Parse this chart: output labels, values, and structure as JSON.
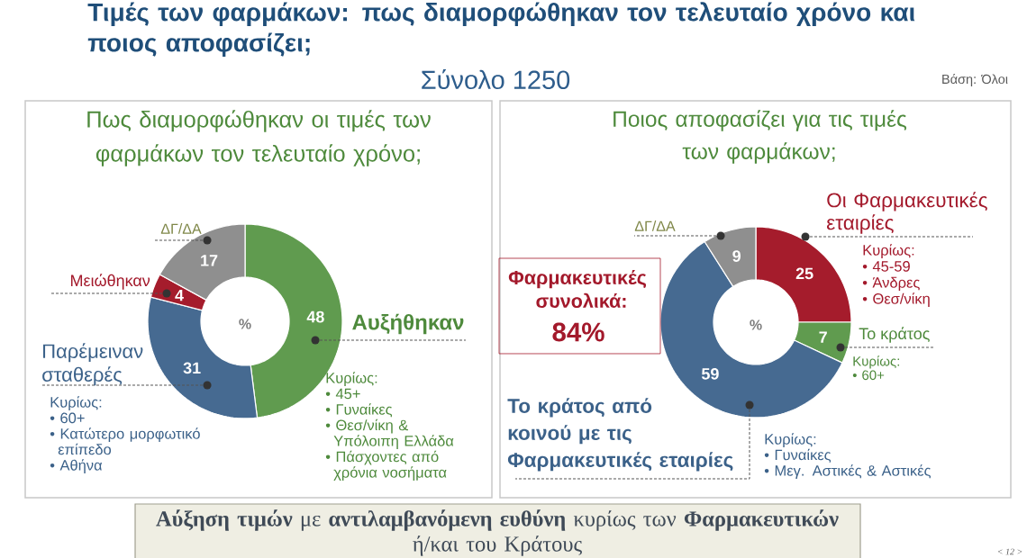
{
  "chart_data": [
    {
      "type": "other",
      "title": "Τιμές των φαρμάκων: πως διαμορφώθηκαν τον τελευταίο χρόνο και ποιος αποφασίζει;",
      "subtitle": "Σύνολο 1250",
      "annotations": [
        "Βάση: Όλοι",
        "**Αύξηση τιμών** με **αντιλαμβανόμενη ευθύνη** κυρίως των **Φαρμακευτικών** ή/και του Κράτους",
        "< 12 >"
      ]
    },
    {
      "type": "donut",
      "title": "Πως διαμορφώθηκαν οι τιμές των φαρμάκων τον τελευταίο χρόνο;",
      "categories": [
        "Αυξήθηκαν",
        "Παρέμειναν σταθερές",
        "Μειώθηκαν",
        "ΔΓ/ΔΑ"
      ],
      "values": [
        48,
        31,
        4,
        17
      ],
      "colors": [
        "#609b4f",
        "#466a91",
        "#a51c2c",
        "#8f8f8f"
      ],
      "data_labels": true,
      "annotations": [
        "%",
        "Κυρίως:",
        "• 60+",
        "• Κατώτερο μορφωτικό επίπεδο",
        "• Αθήνα",
        "Κυρίως:",
        "• 45+",
        "• Γυναίκες",
        "• Θεσ/νίκη & Υπόλοιπη Ελλάδα",
        "• Πάσχοντες από χρόνια νοσήματα"
      ]
    },
    {
      "type": "donut",
      "title": "Ποιος αποφασίζει για τις τιμές των φαρμάκων;",
      "categories": [
        "Οι Φαρμακευτικές εταιρίες",
        "Το κράτος",
        "Το κράτος από κοινού με τις Φαρμακευτικές εταιρίες",
        "ΔΓ/ΔΑ"
      ],
      "values": [
        25,
        7,
        59,
        9
      ],
      "colors": [
        "#a51c2c",
        "#609b4f",
        "#466a91",
        "#8f8f8f"
      ],
      "data_labels": true,
      "annotations": [
        "%",
        "Φαρμακευτικές συνολικά:",
        "84%",
        "Κυρίως:",
        "• 45-59",
        "• Άνδρες",
        "• Θεσ/νίκη",
        "Κυρίως:",
        "• 60+",
        "Κυρίως:",
        "• Γυναίκες",
        "• Μεγ. Αστικές & Αστικές"
      ]
    }
  ]
}
